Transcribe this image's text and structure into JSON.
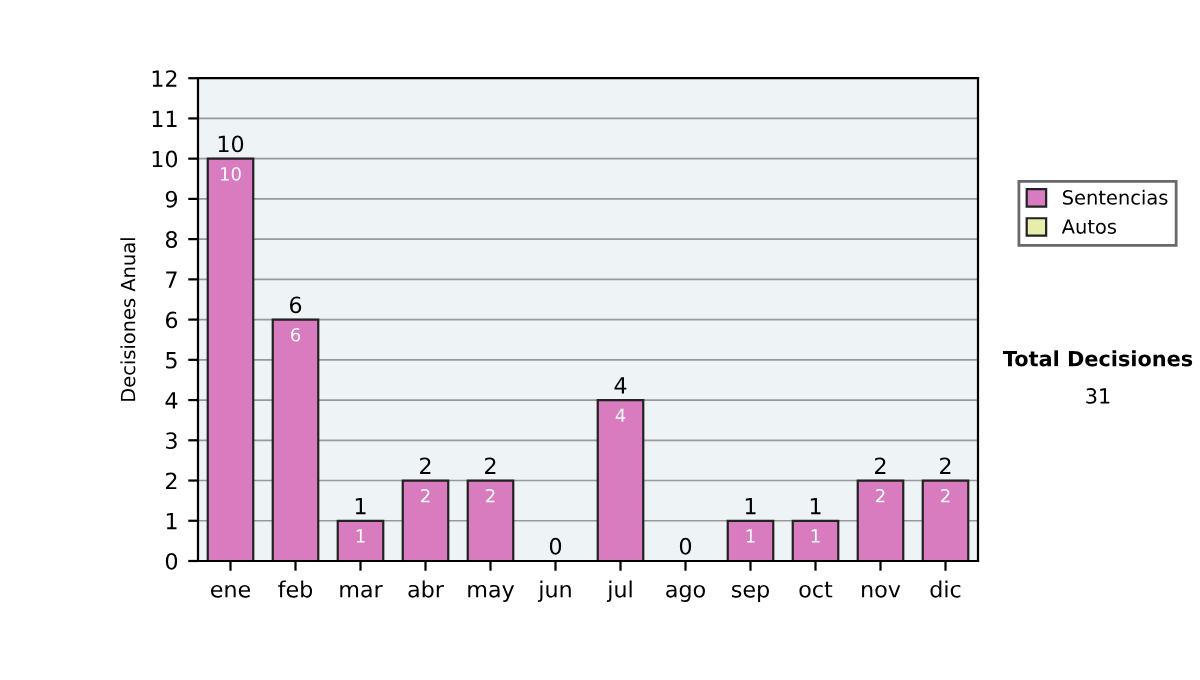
{
  "chart_data": {
    "type": "bar",
    "ylabel": "Decisiones Anual",
    "categories": [
      "ene",
      "feb",
      "mar",
      "abr",
      "may",
      "jun",
      "jul",
      "ago",
      "sep",
      "oct",
      "nov",
      "dic"
    ],
    "stacked": true,
    "series": [
      {
        "name": "Sentencias",
        "color": "#d97bbf",
        "values": [
          10,
          6,
          1,
          2,
          2,
          0,
          4,
          0,
          1,
          1,
          2,
          2
        ],
        "value_labels": [
          "10",
          "6",
          "1",
          "2",
          "2",
          null,
          "4",
          null,
          "1",
          "1",
          "2",
          "2"
        ]
      },
      {
        "name": "Autos",
        "color": "#e6eeaa",
        "values": [
          0,
          0,
          0,
          0,
          0,
          0,
          0,
          0,
          0,
          0,
          0,
          0
        ]
      }
    ],
    "totals": [
      "10",
      "6",
      "1",
      "2",
      "2",
      "0",
      "4",
      "0",
      "1",
      "1",
      "2",
      "2"
    ],
    "ylim": [
      0,
      12
    ],
    "yticks": [
      0,
      1,
      2,
      3,
      4,
      5,
      6,
      7,
      8,
      9,
      10,
      11,
      12
    ],
    "grid": "y",
    "legend": "right",
    "annotations": [
      "Total Decisiones",
      "31"
    ]
  }
}
